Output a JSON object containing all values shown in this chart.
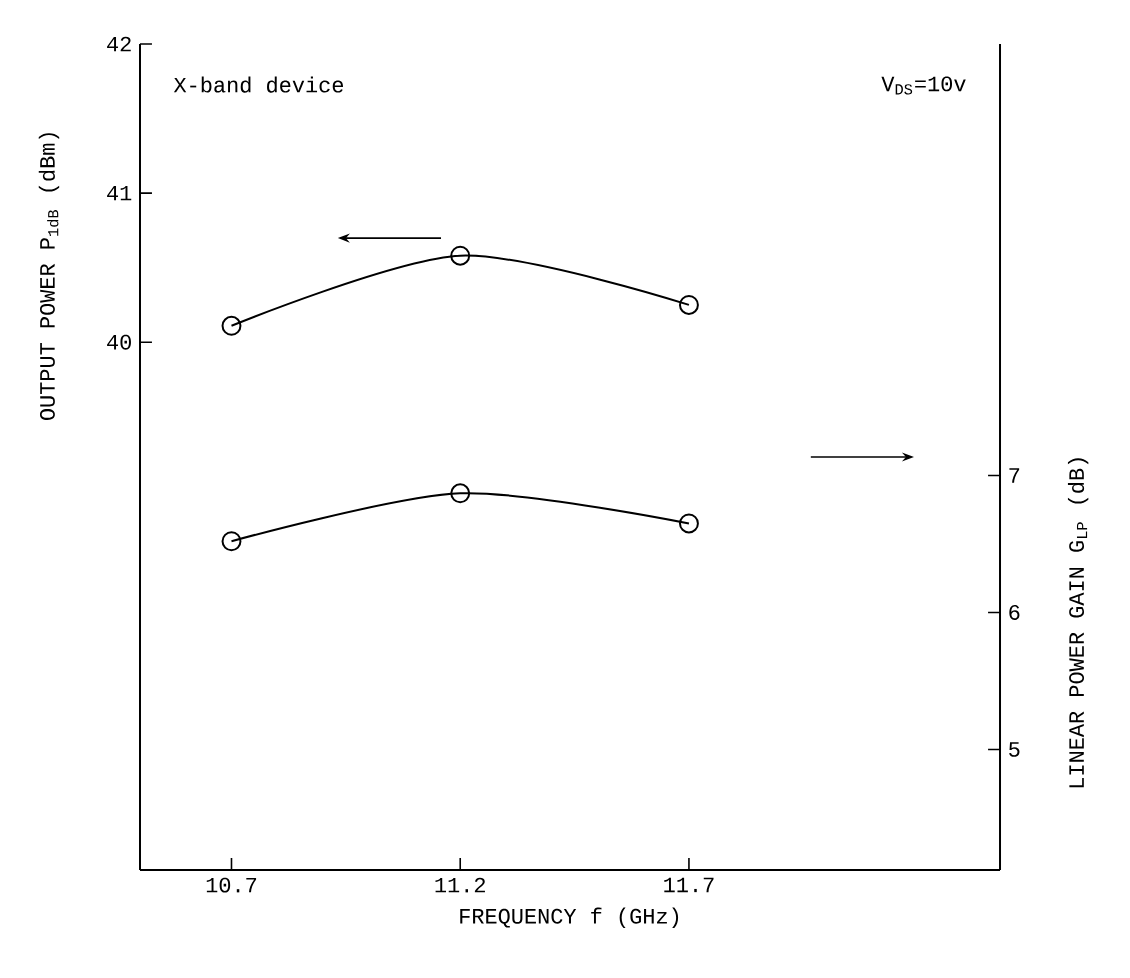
{
  "chart_data": {
    "type": "line",
    "xlabel": "FREQUENCY f (GHz)",
    "ylabel": "OUTPUT POWER P$_{1dB}$ (dBm)",
    "y2label": "LINEAR POWER GAIN G$_{LP}$ (dB)",
    "annotations": [
      "X-band device",
      "V$_{DS}$=10v"
    ],
    "x": [
      10.7,
      11.2,
      11.7
    ],
    "series": [
      {
        "color": "#000000",
        "values": [
          40.11,
          40.58,
          40.25
        ]
      },
      {
        "color": "#000000",
        "values": [
          6.52,
          6.87,
          6.65
        ],
        "axis": "y2"
      }
    ],
    "xlim": [
      10.5,
      12.38
    ],
    "xticks": [
      10.7,
      11.2,
      11.7
    ],
    "ylim": [
      36.46,
      42
    ],
    "yticks": [
      40,
      41,
      42
    ],
    "y2lim": [
      4.12,
      10.15
    ],
    "y2ticks": [
      5,
      6,
      7
    ],
    "marker": "circle",
    "line_style": "solid"
  }
}
